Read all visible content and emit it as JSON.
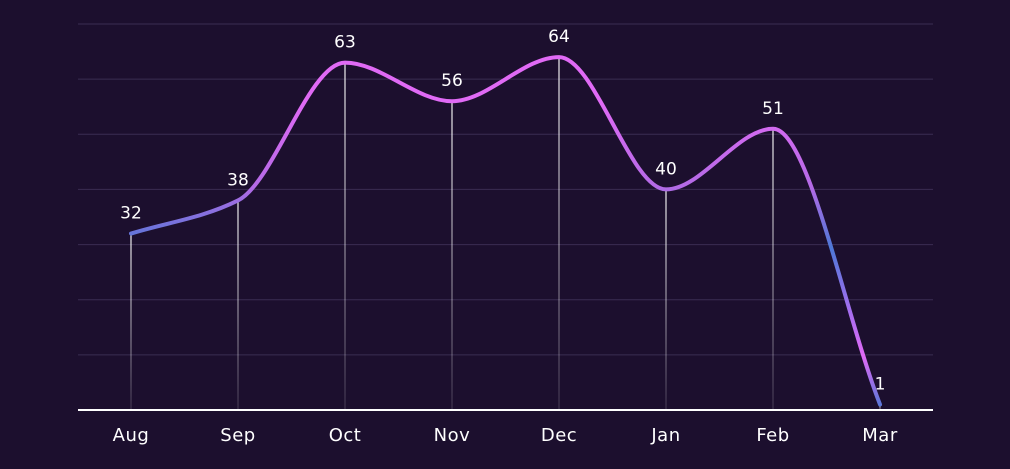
{
  "colors": {
    "background": "#1c0f2e",
    "line_peak": "#e06af5",
    "line_trough": "#4e78d6",
    "gridline": "#3a2d52"
  },
  "chart_data": {
    "type": "line",
    "categories": [
      "Aug",
      "Sep",
      "Oct",
      "Nov",
      "Dec",
      "Jan",
      "Feb",
      "Mar"
    ],
    "series": [
      {
        "values": [
          32,
          38,
          63,
          56,
          64,
          40,
          51,
          1
        ]
      }
    ],
    "ylim": [
      0,
      70
    ],
    "grid": true,
    "data_labels": true,
    "smooth": true,
    "drop_lines": true,
    "legend": "none"
  }
}
